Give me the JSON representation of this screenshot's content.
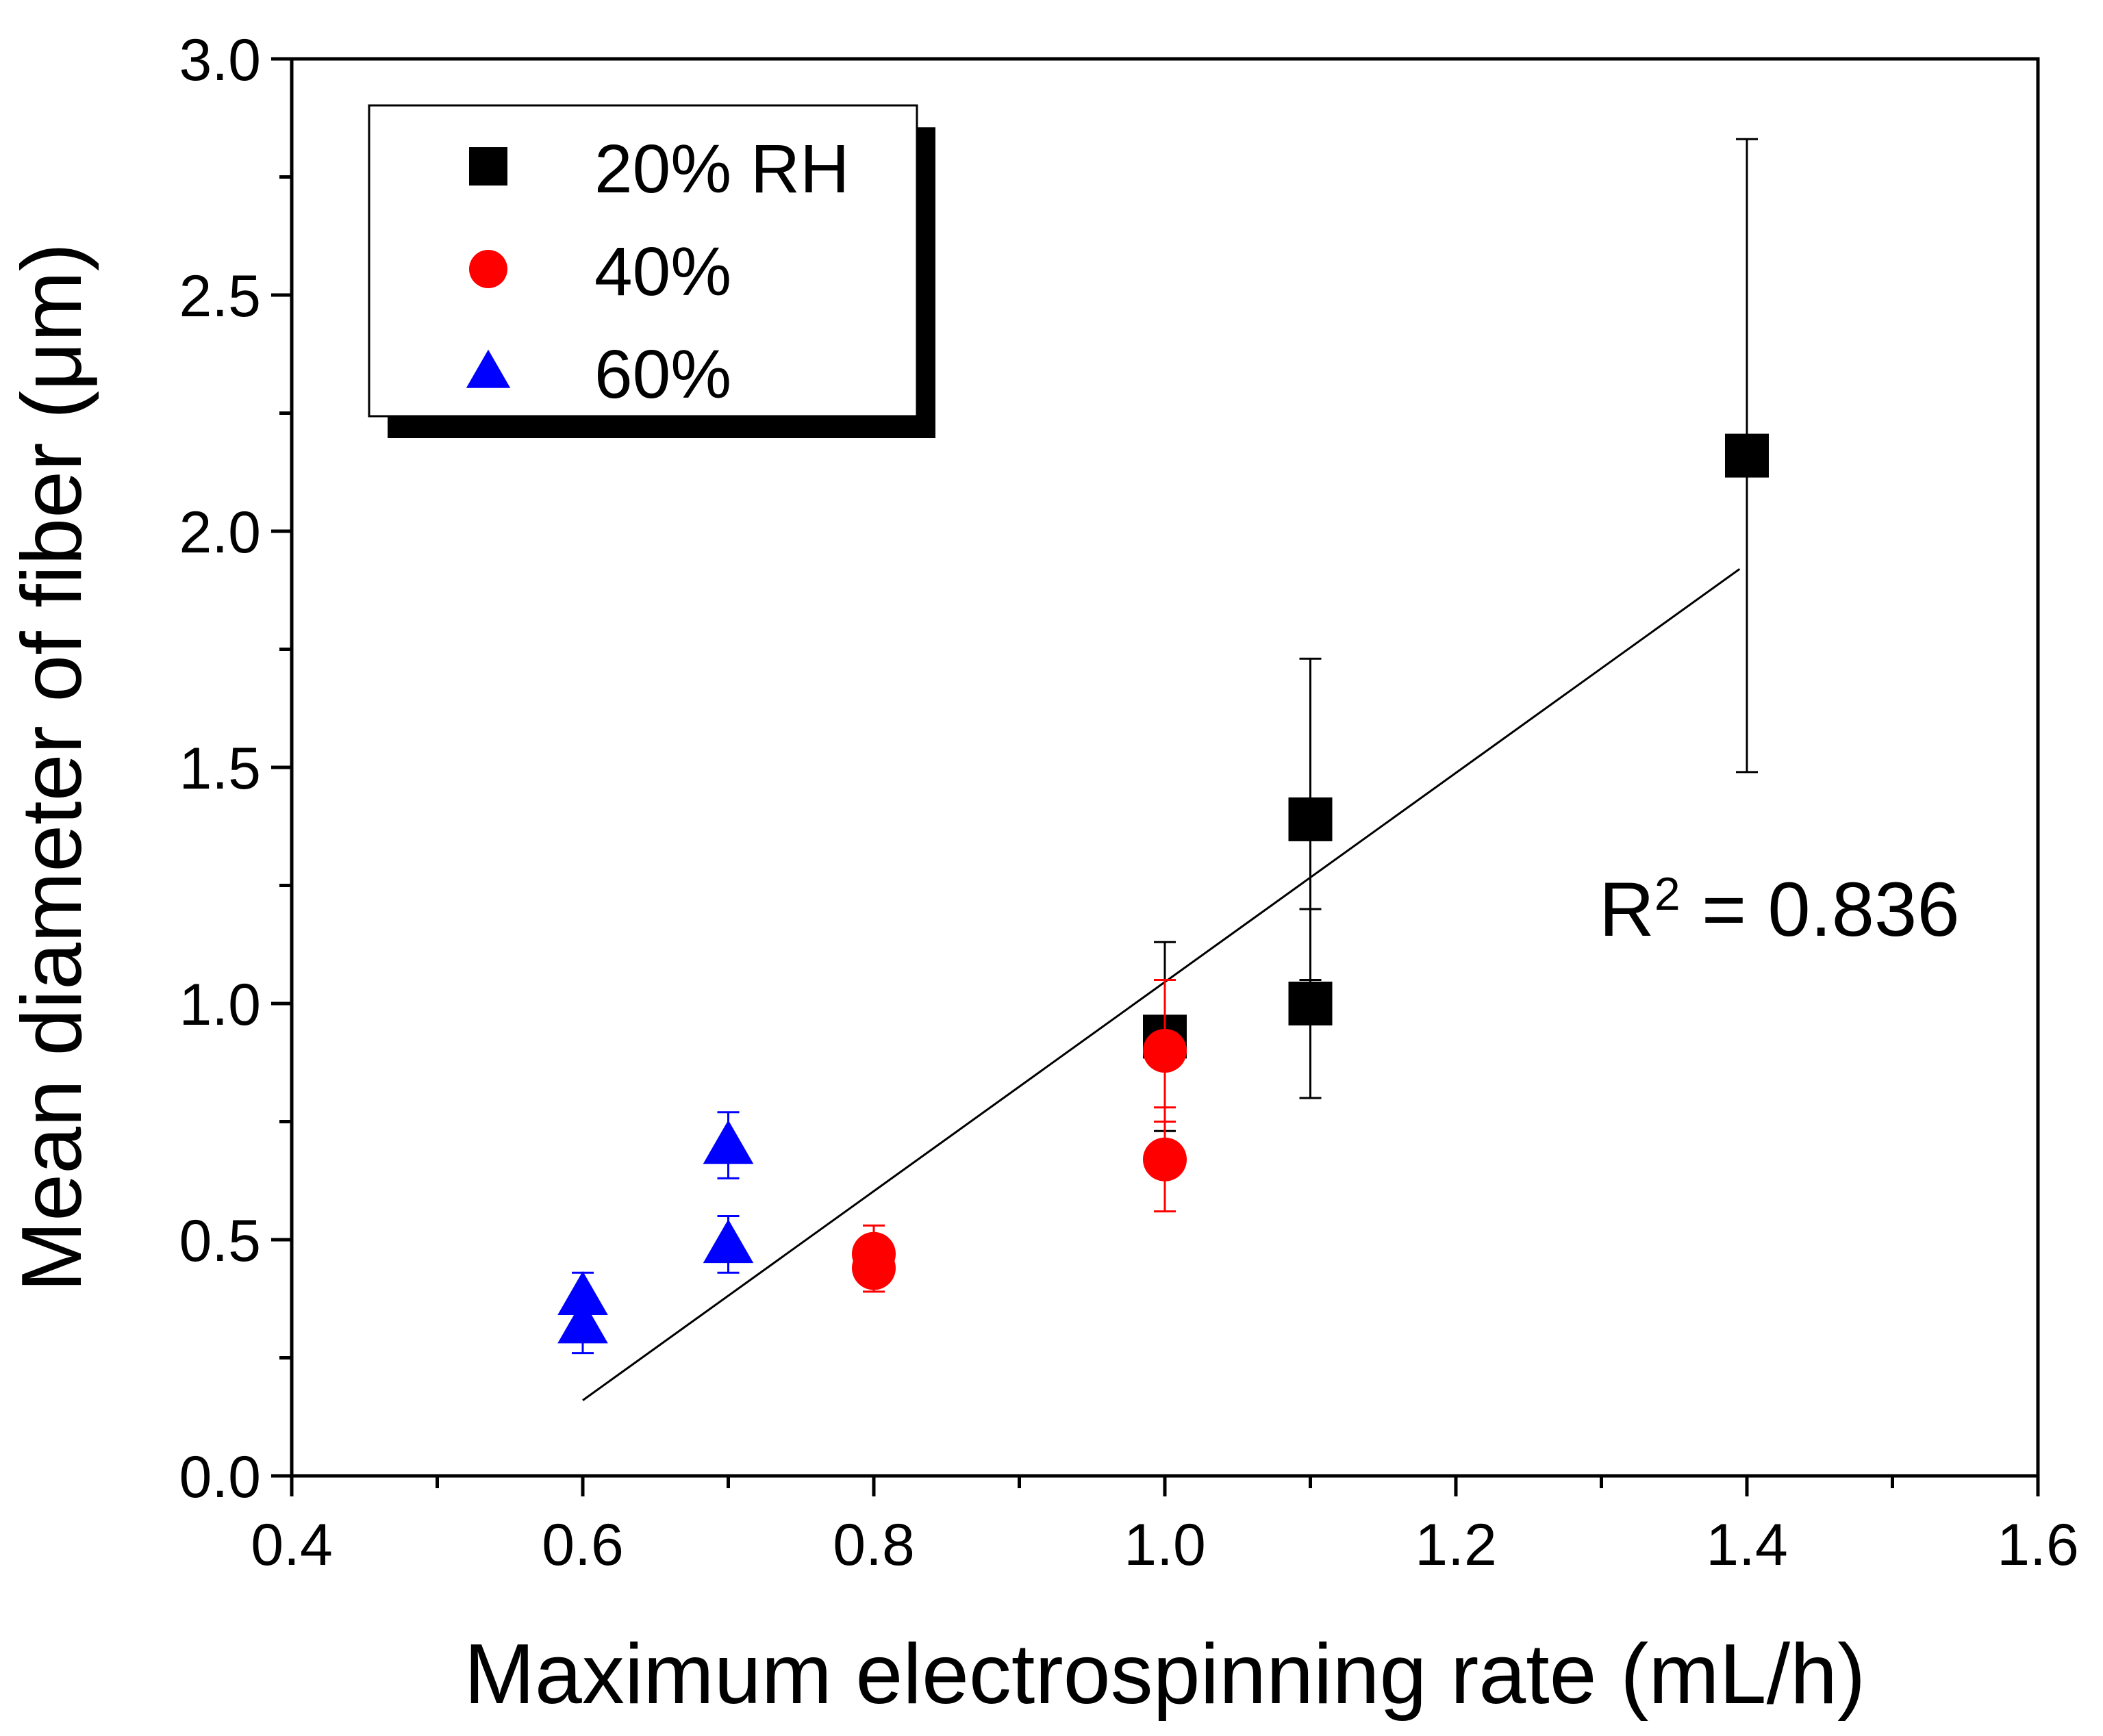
{
  "chart_data": {
    "type": "scatter",
    "title": "",
    "xlabel": "Maximum electrospinning rate (mL/h)",
    "ylabel": "Mean diameter of fiber (μm)",
    "xlim": [
      0.4,
      1.6
    ],
    "ylim": [
      0.0,
      3.0
    ],
    "x_ticks": [
      "0.4",
      "0.6",
      "0.8",
      "1.0",
      "1.2",
      "1.4",
      "1.6"
    ],
    "y_ticks": [
      "0.0",
      "0.5",
      "1.0",
      "1.5",
      "2.0",
      "2.5",
      "3.0"
    ],
    "legend_position": "top-left",
    "series": [
      {
        "name": "20% RH",
        "color": "#000000",
        "marker": "square",
        "points": [
          {
            "x": 1.0,
            "y": 0.93,
            "err": 0.2
          },
          {
            "x": 1.1,
            "y": 1.39,
            "err": 0.34
          },
          {
            "x": 1.1,
            "y": 1.0,
            "err": 0.2
          },
          {
            "x": 1.4,
            "y": 2.16,
            "err": 0.67
          }
        ]
      },
      {
        "name": "40%",
        "color": "#ff0000",
        "marker": "circle",
        "points": [
          {
            "x": 0.8,
            "y": 0.47,
            "err": 0.06
          },
          {
            "x": 0.8,
            "y": 0.44,
            "err": 0.05
          },
          {
            "x": 1.0,
            "y": 0.9,
            "err": 0.15
          },
          {
            "x": 1.0,
            "y": 0.67,
            "err": 0.11
          }
        ]
      },
      {
        "name": "60%",
        "color": "#0000ff",
        "marker": "triangle",
        "points": [
          {
            "x": 0.6,
            "y": 0.38,
            "err": 0.05
          },
          {
            "x": 0.6,
            "y": 0.32,
            "err": 0.06
          },
          {
            "x": 0.7,
            "y": 0.7,
            "err": 0.07
          },
          {
            "x": 0.7,
            "y": 0.49,
            "err": 0.06
          }
        ]
      }
    ],
    "fit_line": {
      "x": [
        0.6,
        1.395
      ],
      "y": [
        0.16,
        1.92
      ],
      "color": "#000000"
    },
    "annotation": {
      "text": "R",
      "superscript": "2",
      "suffix": " = 0.836"
    }
  }
}
